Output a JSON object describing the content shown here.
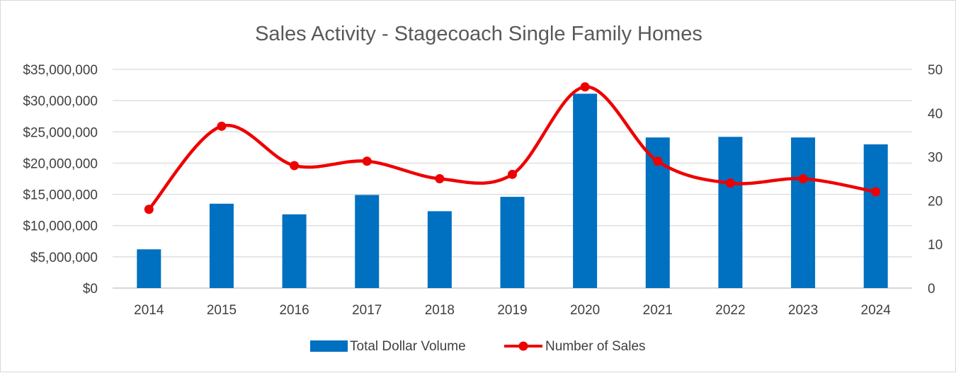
{
  "chart_data": {
    "type": "bar",
    "title": "Sales Activity - Stagecoach Single Family Homes",
    "categories": [
      "2014",
      "2015",
      "2016",
      "2017",
      "2018",
      "2019",
      "2020",
      "2021",
      "2022",
      "2023",
      "2024"
    ],
    "series": [
      {
        "name": "Total Dollar Volume",
        "type": "bar",
        "axis": "left",
        "color": "#0070C0",
        "values": [
          6200000,
          13500000,
          11800000,
          14900000,
          12300000,
          14600000,
          31100000,
          24100000,
          24200000,
          24100000,
          23000000
        ]
      },
      {
        "name": "Number of Sales",
        "type": "line",
        "smooth": true,
        "markers": true,
        "axis": "right",
        "color": "#EE0000",
        "values": [
          18,
          37,
          28,
          29,
          25,
          26,
          46,
          29,
          24,
          25,
          22
        ]
      }
    ],
    "y_left": {
      "ylim": [
        0,
        35000000
      ],
      "ticks": [
        0,
        5000000,
        10000000,
        15000000,
        20000000,
        25000000,
        30000000,
        35000000
      ],
      "tick_labels": [
        "$0",
        "$5,000,000",
        "$10,000,000",
        "$15,000,000",
        "$20,000,000",
        "$25,000,000",
        "$30,000,000",
        "$35,000,000"
      ]
    },
    "y_right": {
      "ylim": [
        0,
        50
      ],
      "ticks": [
        0,
        10,
        20,
        30,
        40,
        50
      ],
      "tick_labels": [
        "0",
        "10",
        "20",
        "30",
        "40",
        "50"
      ]
    },
    "grid": true,
    "legend": {
      "position": "bottom",
      "entries": [
        "Total Dollar Volume",
        "Number of Sales"
      ]
    }
  }
}
